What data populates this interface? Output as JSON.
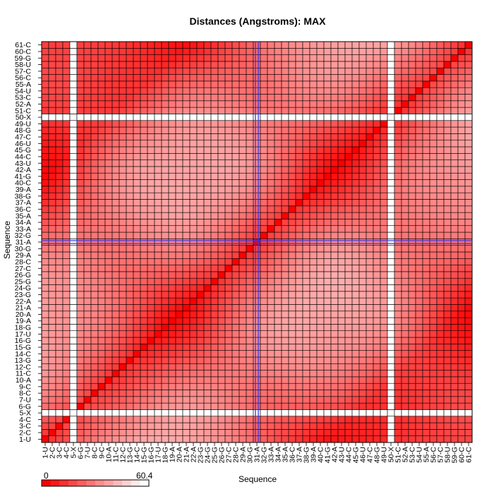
{
  "chart_data": {
    "type": "heatmap",
    "title": "Distances (Angstroms):  MAX",
    "xlabel": "Sequence",
    "ylabel": "Sequence",
    "sequence": [
      "1-U",
      "2-C",
      "3-C",
      "4-C",
      "5-X",
      "6-G",
      "7-U",
      "8-C",
      "9-C",
      "10-A",
      "11-C",
      "12-C",
      "13-G",
      "14-C",
      "15-G",
      "16-G",
      "17-U",
      "18-G",
      "19-A",
      "20-A",
      "21-A",
      "22-A",
      "23-G",
      "24-G",
      "25-G",
      "26-G",
      "27-C",
      "28-C",
      "29-A",
      "30-G",
      "31-A",
      "32-G",
      "33-A",
      "34-A",
      "35-A",
      "36-C",
      "37-A",
      "38-G",
      "39-A",
      "40-C",
      "41-G",
      "42-A",
      "43-U",
      "44-C",
      "45-G",
      "46-U",
      "47-C",
      "48-G",
      "49-U",
      "50-X",
      "51-C",
      "52-A",
      "53-C",
      "54-U",
      "55-A",
      "56-C",
      "57-C",
      "58-U",
      "59-G",
      "60-C",
      "61-C"
    ],
    "missing": [
      "5-X",
      "50-X"
    ],
    "highlight": "31-A",
    "color_scale": {
      "min": 0,
      "max": 60.4,
      "low_color": "#ff0000",
      "high_color": "#ffffff"
    },
    "grid": true
  },
  "legend": {
    "min_label": "0",
    "max_label": "60.4"
  }
}
